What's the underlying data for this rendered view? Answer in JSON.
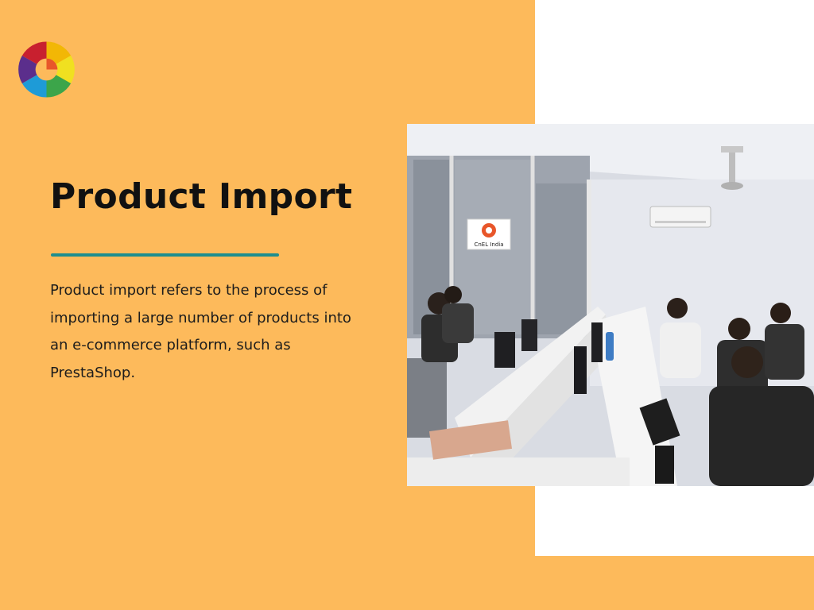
{
  "slide": {
    "title": "Product Import",
    "body": "Product import refers to the process of importing a large number of products into an e-commerce platform, such as PrestaShop."
  },
  "photo": {
    "sign_text": "CnEL India"
  },
  "colors": {
    "background": "#FDBA5B",
    "panel": "#FFFFFF",
    "divider": "#1E8E8E",
    "title": "#111111"
  }
}
